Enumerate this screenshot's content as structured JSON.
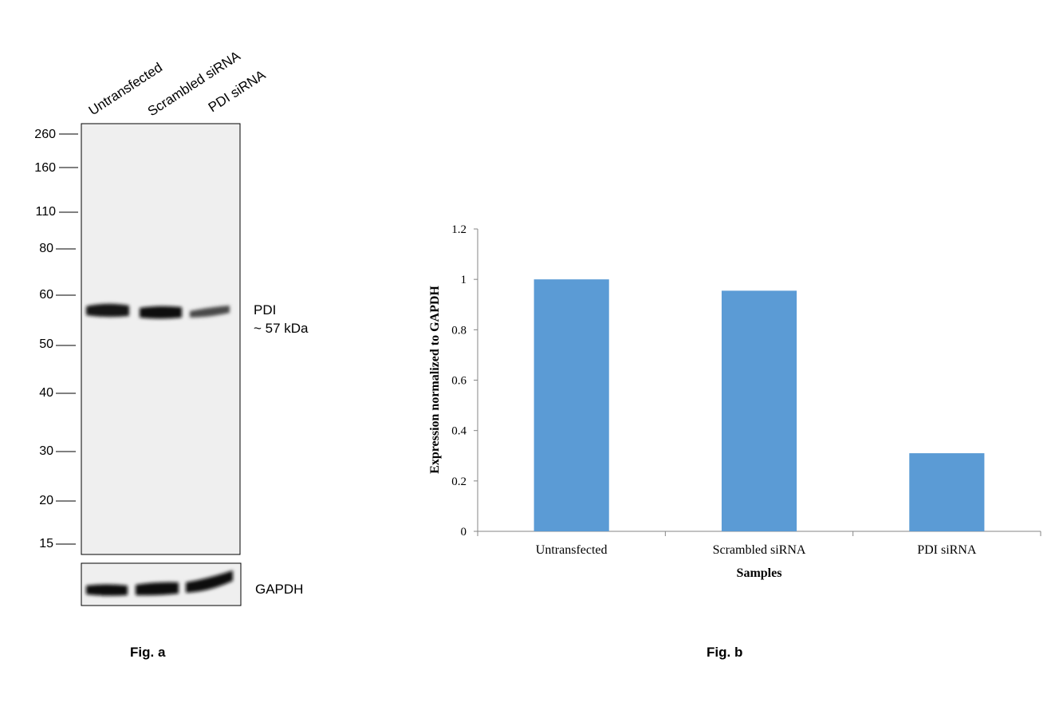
{
  "western_blot": {
    "lane_labels": [
      "Untransfected",
      "Scrambled siRNA",
      "PDI siRNA"
    ],
    "markers": [
      "260",
      "160",
      "110",
      "80",
      "60",
      "50",
      "40",
      "30",
      "20",
      "15"
    ],
    "band_label": "PDI",
    "band_size": "~ 57 kDa",
    "loading_control_label": "GAPDH",
    "figure_label": "Fig. a"
  },
  "chart_data": {
    "type": "bar",
    "categories": [
      "Untransfected",
      "Scrambled siRNA",
      "PDI siRNA"
    ],
    "values": [
      1.0,
      0.955,
      0.31
    ],
    "title": "",
    "xlabel": "Samples",
    "ylabel": "Expression normalized to GAPDH",
    "ylim": [
      0,
      1.2
    ],
    "yticks": [
      "0",
      "0.2",
      "0.4",
      "0.6",
      "0.8",
      "1",
      "1.2"
    ],
    "grid": false,
    "bar_color": "#5b9bd5",
    "figure_label": "Fig. b"
  }
}
